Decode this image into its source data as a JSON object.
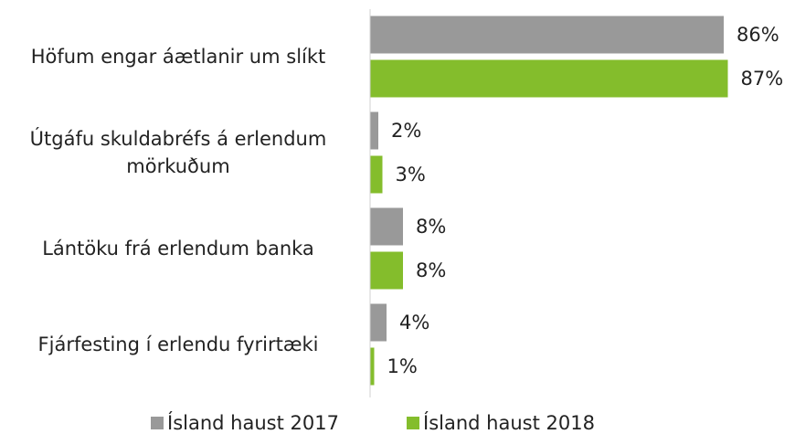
{
  "chart_data": {
    "type": "bar",
    "orientation": "horizontal",
    "categories": [
      "Höfum engar áætlanir um slíkt",
      "Útgáfu skuldabréfs á erlendum mörkuðum",
      "Lántöku frá erlendum banka",
      "Fjárfesting í erlendu fyrirtæki"
    ],
    "series": [
      {
        "name": "Ísland haust 2017",
        "color": "#999999",
        "values": [
          86,
          2,
          8,
          4
        ],
        "value_labels": [
          "86%",
          "2%",
          "8%",
          "4%"
        ]
      },
      {
        "name": "Ísland haust 2018",
        "color": "#84bd2c",
        "values": [
          87,
          3,
          8,
          1
        ],
        "value_labels": [
          "87%",
          "3%",
          "8%",
          "1%"
        ]
      }
    ],
    "legend": "bottom"
  }
}
